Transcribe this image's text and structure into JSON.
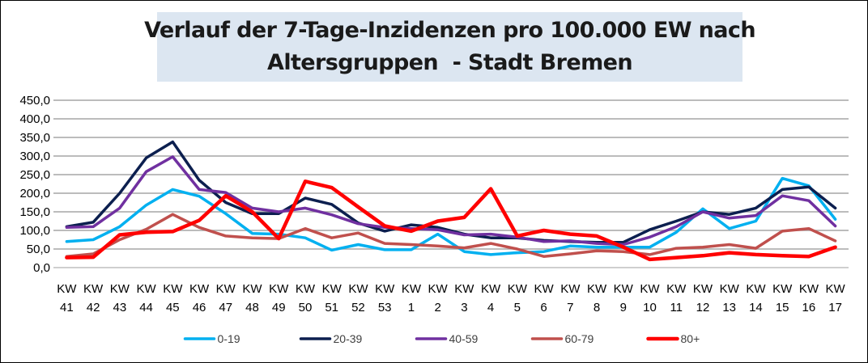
{
  "chart_data": {
    "type": "line",
    "title_lines": [
      "Verlauf der 7-Tage-Inzidenzen pro 100.000 EW nach",
      "Altersgruppen  - Stadt Bremen"
    ],
    "xlabel": "",
    "ylabel": "",
    "ylim": [
      0,
      450
    ],
    "y_ticks": [
      "0,0",
      "50,0",
      "100,0",
      "150,0",
      "200,0",
      "250,0",
      "300,0",
      "350,0",
      "400,0",
      "450,0"
    ],
    "y_tick_values": [
      0,
      50,
      100,
      150,
      200,
      250,
      300,
      350,
      400,
      450
    ],
    "grid": true,
    "legend_position": "bottom",
    "categories": [
      [
        "KW",
        "41"
      ],
      [
        "KW",
        "42"
      ],
      [
        "KW",
        "43"
      ],
      [
        "KW",
        "44"
      ],
      [
        "KW",
        "45"
      ],
      [
        "KW",
        "46"
      ],
      [
        "KW",
        "47"
      ],
      [
        "KW",
        "48"
      ],
      [
        "KW",
        "49"
      ],
      [
        "KW",
        "50"
      ],
      [
        "KW",
        "51"
      ],
      [
        "KW",
        "52"
      ],
      [
        "KW",
        "53"
      ],
      [
        "KW",
        "1"
      ],
      [
        "KW",
        "2"
      ],
      [
        "KW",
        "3"
      ],
      [
        "KW",
        "4"
      ],
      [
        "KW",
        "5"
      ],
      [
        "KW",
        "6"
      ],
      [
        "KW",
        "7"
      ],
      [
        "KW",
        "8"
      ],
      [
        "KW",
        "9"
      ],
      [
        "KW",
        "10"
      ],
      [
        "KW",
        "11"
      ],
      [
        "KW",
        "12"
      ],
      [
        "KW",
        "13"
      ],
      [
        "KW",
        "14"
      ],
      [
        "KW",
        "15"
      ],
      [
        "KW",
        "16"
      ],
      [
        "KW",
        "17"
      ]
    ],
    "series": [
      {
        "name": "0-19",
        "color": "#00b0f0",
        "width": 3.5,
        "values": [
          70,
          75,
          110,
          168,
          210,
          192,
          145,
          92,
          90,
          80,
          47,
          62,
          48,
          48,
          90,
          43,
          35,
          40,
          43,
          58,
          55,
          55,
          55,
          95,
          158,
          105,
          125,
          240,
          220,
          130
        ]
      },
      {
        "name": "20-39",
        "color": "#0c1f4f",
        "width": 3.5,
        "values": [
          110,
          122,
          200,
          295,
          338,
          235,
          175,
          145,
          145,
          187,
          170,
          120,
          98,
          115,
          108,
          90,
          80,
          80,
          73,
          70,
          68,
          68,
          102,
          125,
          150,
          143,
          160,
          210,
          217,
          160
        ]
      },
      {
        "name": "40-59",
        "color": "#7030a0",
        "width": 3.5,
        "values": [
          108,
          110,
          160,
          258,
          298,
          210,
          202,
          160,
          150,
          160,
          142,
          118,
          108,
          105,
          102,
          88,
          90,
          82,
          70,
          72,
          65,
          62,
          82,
          110,
          150,
          133,
          140,
          193,
          180,
          112
        ]
      },
      {
        "name": "60-79",
        "color": "#c0504d",
        "width": 3.5,
        "values": [
          30,
          37,
          75,
          103,
          143,
          108,
          85,
          80,
          78,
          105,
          80,
          93,
          65,
          62,
          58,
          53,
          65,
          50,
          30,
          37,
          45,
          43,
          35,
          52,
          55,
          62,
          52,
          98,
          105,
          72
        ]
      },
      {
        "name": "80+",
        "color": "#ff0000",
        "width": 4.5,
        "values": [
          27,
          28,
          88,
          95,
          97,
          127,
          193,
          150,
          78,
          232,
          215,
          163,
          112,
          98,
          125,
          135,
          212,
          85,
          100,
          90,
          85,
          55,
          22,
          27,
          32,
          40,
          35,
          32,
          30,
          55
        ]
      }
    ]
  }
}
